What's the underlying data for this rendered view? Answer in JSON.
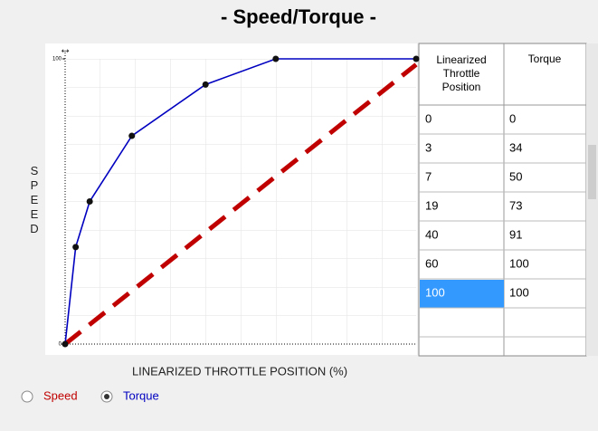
{
  "title": "- Speed/Torque -",
  "chart": {
    "y_label": "SPEED",
    "x_label": "LINEARIZED THROTTLE POSITION (%)",
    "xlim": [
      0,
      100
    ],
    "ylim": [
      0,
      100
    ],
    "yticks": [
      0,
      100
    ],
    "series": [
      {
        "name": "Speed",
        "color": "#c00000",
        "x": [
          0,
          100
        ],
        "values": [
          0,
          98
        ]
      },
      {
        "name": "Torque",
        "color": "#0000c0",
        "x": [
          0,
          3,
          7,
          19,
          40,
          60,
          100
        ],
        "values": [
          0,
          34,
          50,
          73,
          91,
          100,
          100
        ]
      }
    ]
  },
  "table": {
    "headers": [
      "Linearized Throttle Position",
      "Torque"
    ],
    "selected_row": 6
  },
  "selected_series": 1
}
